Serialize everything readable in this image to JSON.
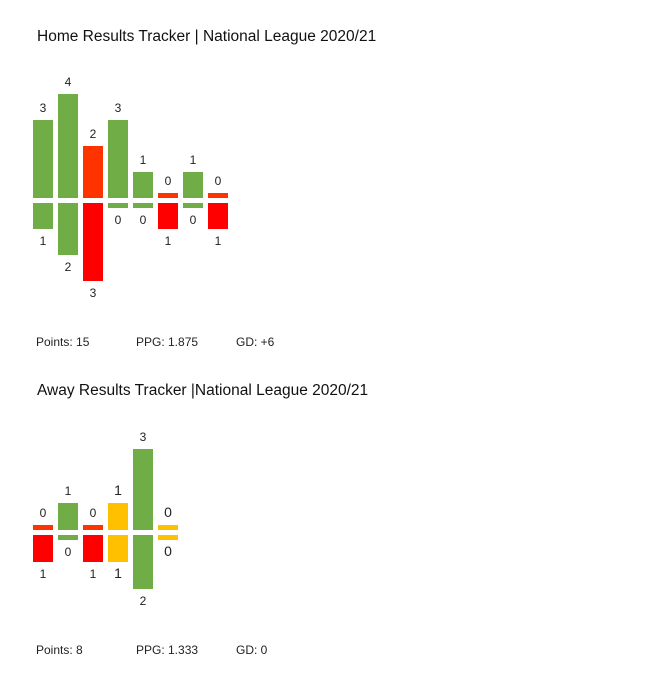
{
  "colors": {
    "win": "#70ad47",
    "loss": "#ff0000",
    "loss_top": "#ff3300",
    "draw": "#ffc000"
  },
  "chart_data": [
    {
      "type": "bar",
      "title": "Home Results Tracker | National League 2020/21",
      "series": [
        {
          "values": [
            3,
            4,
            2,
            3,
            1,
            0,
            1,
            0
          ]
        },
        {
          "values": [
            1,
            2,
            3,
            0,
            0,
            1,
            0,
            1
          ]
        }
      ],
      "results": [
        "W",
        "W",
        "L",
        "W",
        "W",
        "L",
        "W",
        "L"
      ],
      "stats": {
        "points": "Points:  15",
        "ppg": "PPG: 1.875",
        "gd": "GD: +6"
      }
    },
    {
      "type": "bar",
      "title": "Away Results Tracker |National League 2020/21",
      "series": [
        {
          "values": [
            0,
            1,
            0,
            1,
            3,
            0
          ]
        },
        {
          "values": [
            1,
            0,
            1,
            1,
            2,
            0
          ]
        }
      ],
      "results": [
        "L",
        "W",
        "L",
        "D",
        "W",
        "D"
      ],
      "stats": {
        "points": "Points: 8",
        "ppg": "PPG: 1.333",
        "gd": "GD: 0"
      }
    }
  ]
}
